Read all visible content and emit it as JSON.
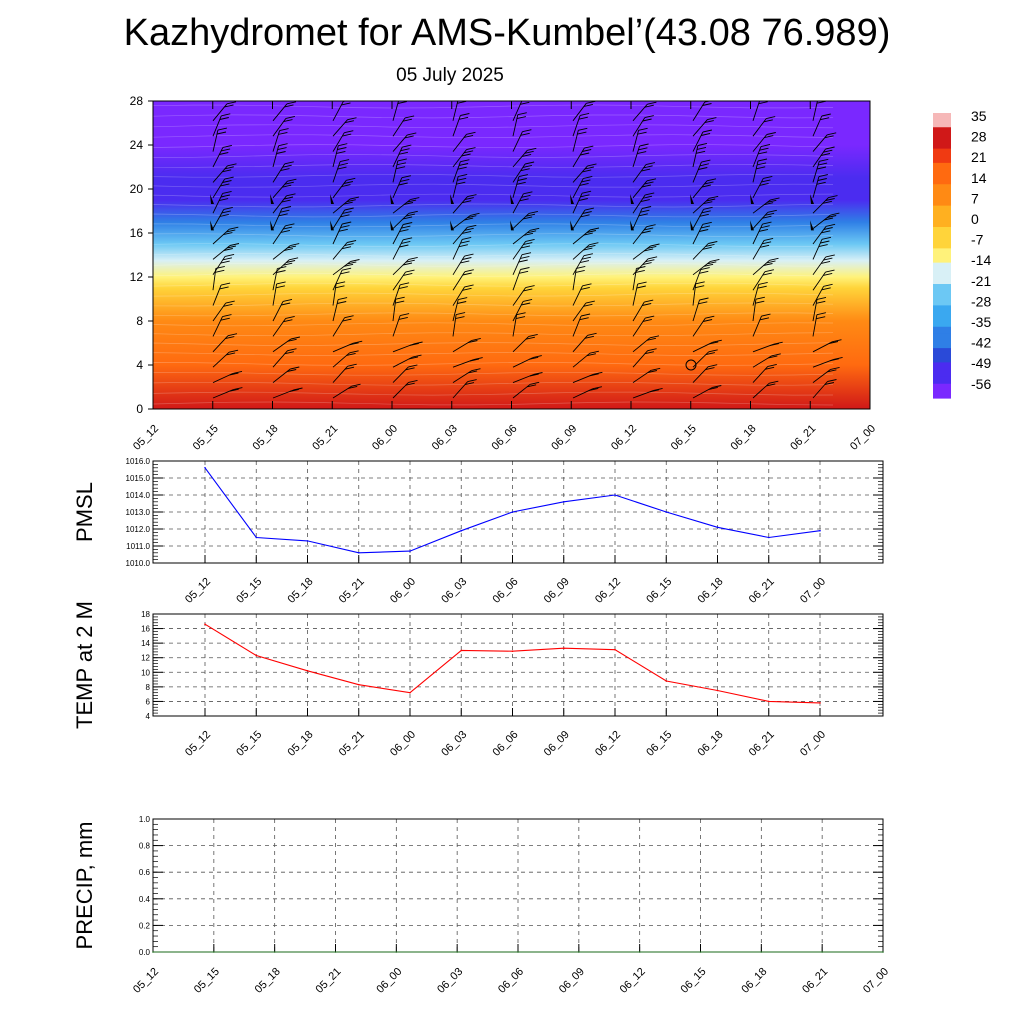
{
  "title": "Kazhydromet for AMS-Kumbel’(43.08 76.989)",
  "subtitle": "05 July 2025",
  "chart_data": [
    {
      "type": "heatmap",
      "name": "upper-air temperature and wind cross-section",
      "x_tick_labels": [
        "05_12",
        "05_15",
        "05_18",
        "05_21",
        "06_00",
        "06_03",
        "06_06",
        "06_09",
        "06_12",
        "06_15",
        "06_18",
        "06_21",
        "07_00"
      ],
      "y_ticks": [
        0,
        4,
        8,
        12,
        16,
        20,
        24,
        28
      ],
      "ylim": [
        0,
        28
      ],
      "colorbar_labels": [
        "35",
        "28",
        "21",
        "14",
        "7",
        "0",
        "-7",
        "-14",
        "-21",
        "-28",
        "-35",
        "-42",
        "-49",
        "-56"
      ],
      "temperature_profile": [
        {
          "height": 0,
          "value": 30
        },
        {
          "height": 4,
          "value": 22
        },
        {
          "height": 8,
          "value": 10
        },
        {
          "height": 11,
          "value": -2
        },
        {
          "height": 12,
          "value": -8
        },
        {
          "height": 13.5,
          "value": -16
        },
        {
          "height": 15,
          "value": -26
        },
        {
          "height": 17,
          "value": -40
        },
        {
          "height": 19,
          "value": -56
        },
        {
          "height": 21,
          "value": -50
        },
        {
          "height": 24,
          "value": -58
        },
        {
          "height": 28,
          "value": -60
        }
      ],
      "colorscale": [
        "#7a28ff",
        "#4b2cf0",
        "#2a4ad8",
        "#2f7fe6",
        "#3aa8f0",
        "#6cc8f4",
        "#d8f0f6",
        "#fff27a",
        "#ffd43a",
        "#ffb020",
        "#ff8a14",
        "#ff6a10",
        "#f03a12",
        "#d01818",
        "#f6b8b8"
      ],
      "wind_barbs": "shown at each forecast time at multiple heights",
      "grid": false
    },
    {
      "type": "line",
      "ylabel": "PMSL",
      "x": [
        "05_12",
        "05_15",
        "05_18",
        "05_21",
        "06_00",
        "06_03",
        "06_06",
        "06_09",
        "06_12",
        "06_15",
        "06_18",
        "06_21",
        "07_00"
      ],
      "series": [
        {
          "values": [
            1015.6,
            1011.5,
            1011.3,
            1010.6,
            1010.7,
            1011.9,
            1013.0,
            1013.6,
            1014.0,
            1013.0,
            1012.1,
            1011.5,
            1011.9
          ],
          "color": "#0000ff"
        }
      ],
      "y_ticks": [
        "1010.0",
        "1011.0",
        "1012.0",
        "1013.0",
        "1014.0",
        "1015.0",
        "1016.0"
      ],
      "ylim": [
        1010,
        1016
      ],
      "grid": true
    },
    {
      "type": "line",
      "ylabel": "TEMP at 2 M",
      "x": [
        "05_12",
        "05_15",
        "05_18",
        "05_21",
        "06_00",
        "06_03",
        "06_06",
        "06_09",
        "06_12",
        "06_15",
        "06_18",
        "06_21",
        "07_00"
      ],
      "series": [
        {
          "values": [
            16.6,
            12.3,
            10.2,
            8.3,
            7.2,
            13.0,
            12.9,
            13.3,
            13.1,
            8.8,
            7.5,
            6.0,
            5.8
          ],
          "color": "#ff0000"
        }
      ],
      "y_ticks": [
        "4",
        "6",
        "8",
        "10",
        "12",
        "14",
        "16",
        "18"
      ],
      "ylim": [
        4,
        18
      ],
      "grid": true
    },
    {
      "type": "line",
      "ylabel": "PRECIP, mm",
      "x": [
        "05_12",
        "05_15",
        "05_18",
        "05_21",
        "06_00",
        "06_03",
        "06_06",
        "06_09",
        "06_12",
        "06_15",
        "06_18",
        "06_21",
        "07_00"
      ],
      "series": [
        {
          "values": [
            0,
            0,
            0,
            0,
            0,
            0,
            0,
            0,
            0,
            0,
            0,
            0,
            0
          ],
          "color": "#1a6a1a"
        }
      ],
      "y_ticks": [
        "0.0",
        "0.2",
        "0.4",
        "0.6",
        "0.8",
        "1.0"
      ],
      "ylim": [
        0,
        1
      ],
      "grid": true
    }
  ]
}
